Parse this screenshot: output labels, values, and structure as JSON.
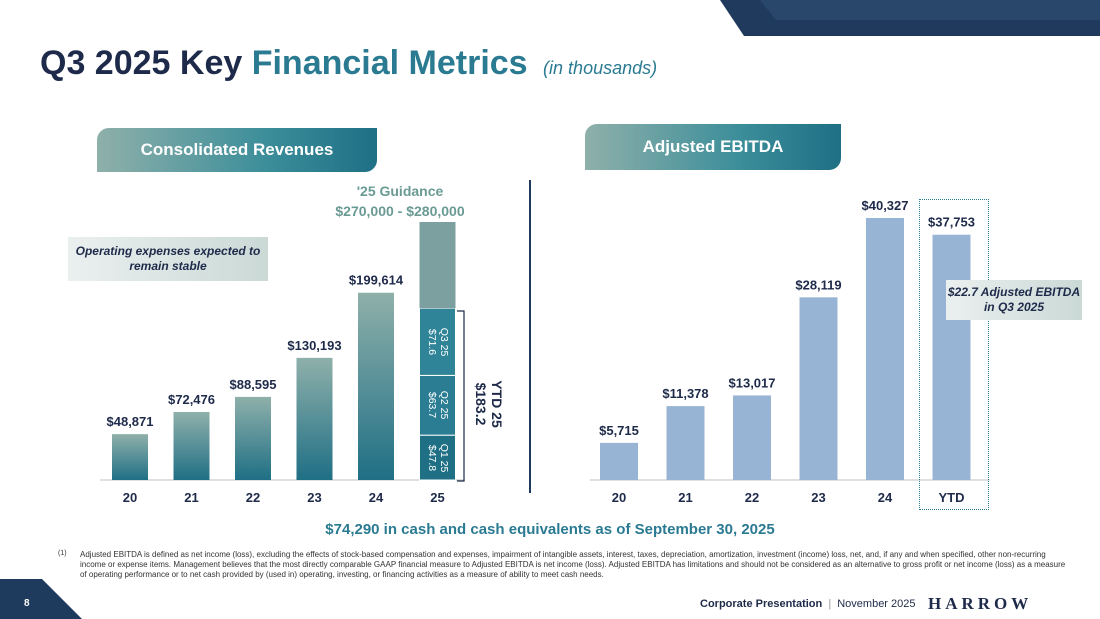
{
  "header": {
    "title_part1": "Q3 2025 Key",
    "title_part2": "Financial Metrics",
    "title_sub": "(in thousands)"
  },
  "revenues": {
    "pill": "Consolidated Revenues",
    "guidance_label": "'25 Guidance",
    "guidance_range": "$270,000 - $280,000",
    "note": "Operating expenses expected to remain stable",
    "ytd_label": "YTD 25",
    "ytd_value": "$183.2",
    "segments": [
      {
        "label": "Q1 25",
        "value": "$47.8"
      },
      {
        "label": "Q2 25",
        "value": "$63.7"
      },
      {
        "label": "Q3 25",
        "value": "$71.6"
      }
    ]
  },
  "ebitda": {
    "pill": "Adjusted EBITDA",
    "note": "$22.7 Adjusted EBITDA in Q3 2025"
  },
  "chart_data": [
    {
      "type": "bar",
      "title": "Consolidated Revenues",
      "categories": [
        "20",
        "21",
        "22",
        "23",
        "24",
        "25"
      ],
      "values": [
        48871,
        72476,
        88595,
        130193,
        199614,
        null
      ],
      "labels": [
        "$48,871",
        "$72,476",
        "$88,595",
        "$130,193",
        "$199,614",
        ""
      ],
      "stacked_25": {
        "Q1 25": 47.8,
        "Q2 25": 63.7,
        "Q3 25": 71.6,
        "guidance_top": 275000
      },
      "ylim": [
        0,
        280000
      ]
    },
    {
      "type": "bar",
      "title": "Adjusted EBITDA",
      "categories": [
        "20",
        "21",
        "22",
        "23",
        "24",
        "YTD"
      ],
      "values": [
        5715,
        11378,
        13017,
        28119,
        40327,
        37753
      ],
      "labels": [
        "$5,715",
        "$11,378",
        "$13,017",
        "$28,119",
        "$40,327",
        "$37,753"
      ],
      "ylim": [
        0,
        45000
      ]
    }
  ],
  "cash_statement": "$74,290 in cash and cash equivalents as of September 30, 2025",
  "footnote": {
    "marker": "(1)",
    "text": "Adjusted EBITDA is defined as net income (loss), excluding the effects of stock-based compensation and expenses, impairment of intangible assets, interest, taxes, depreciation, amortization, investment (income) loss, net, and, if any and when specified, other non-recurring income or expense items. Management believes that the most directly comparable GAAP financial measure to Adjusted EBITDA is net income (loss). Adjusted EBITDA has limitations and should not be considered as an alternative to gross profit or net income (loss) as a measure of operating performance or to net cash provided by (used in) operating, investing, or financing activities as a measure of ability to meet cash needs."
  },
  "footer": {
    "page_number": "8",
    "presentation": "Corporate Presentation",
    "separator": "|",
    "date": "November 2025",
    "logo": "HARROW"
  }
}
